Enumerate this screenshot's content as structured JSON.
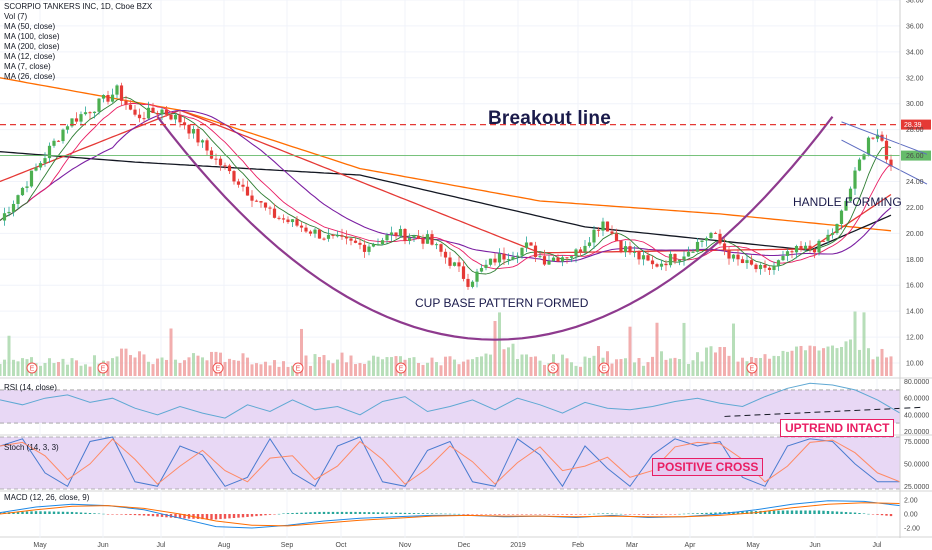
{
  "legend": {
    "title": "SCORPIO TANKERS INC, 1D, Cboe BZX",
    "lines": [
      "Vol (7)",
      "MA (50, close)",
      "MA (100, close)",
      "MA (200, close)",
      "MA (12, close)",
      "MA (7, close)",
      "MA (26, close)"
    ]
  },
  "annotations": {
    "breakout": "Breakout line",
    "handle": "HANDLE FORMING",
    "cup": "CUP BASE PATTERN FORMED",
    "uptrend": "UPTREND INTACT",
    "positive_cross": "POSITIVE CROSS"
  },
  "panes": {
    "rsi_label": "RSI (14, close)",
    "stoch_label": "Stoch (14, 3, 3)",
    "macd_label": "MACD (12, 26, close, 9)"
  },
  "colors": {
    "breakout_line": "#e53935",
    "green_line": "#66bb6a",
    "ma50": "#e53935",
    "ma100": "#131722",
    "ma200": "#ff6d00",
    "ma12": "#e91e63",
    "ma7": "#2e7d32",
    "ma26": "#7b1fa2",
    "cup": "#8e3a8e",
    "up": "#26a69a",
    "down": "#ef5350",
    "annotation_accent": "#e91e63",
    "rsi_line": "#5fa8d3",
    "band": "#e8d8f5"
  },
  "chart_data": {
    "type": "line",
    "main": {
      "x_ticks": [
        "May",
        "Jun",
        "Jul",
        "Aug",
        "Sep",
        "Oct",
        "Nov",
        "Dec",
        "2019",
        "Feb",
        "Mar",
        "Apr",
        "May",
        "Jun",
        "Jul"
      ],
      "y_ticks": [
        10.0,
        12.0,
        14.0,
        16.0,
        18.0,
        20.0,
        22.0,
        24.0,
        26.0,
        28.0,
        30.0,
        32.0,
        34.0,
        36.0,
        38.0
      ],
      "ylim": [
        9,
        38
      ],
      "breakout_level": 28.39,
      "breakout_label": "28.39",
      "green_level": 26.0,
      "price_path": [
        [
          0,
          21.0
        ],
        [
          8,
          25.0
        ],
        [
          15,
          28.5
        ],
        [
          22,
          30.0
        ],
        [
          26,
          31.0
        ],
        [
          30,
          29.0
        ],
        [
          36,
          29.5
        ],
        [
          41,
          28.5
        ],
        [
          47,
          26.0
        ],
        [
          53,
          24.0
        ],
        [
          60,
          21.5
        ],
        [
          67,
          20.5
        ],
        [
          74,
          19.5
        ],
        [
          81,
          19.0
        ],
        [
          88,
          20.0
        ],
        [
          95,
          19.5
        ],
        [
          101,
          17.5
        ],
        [
          104,
          16.3
        ],
        [
          110,
          18.0
        ],
        [
          117,
          19.0
        ],
        [
          121,
          18.0
        ],
        [
          128,
          18.5
        ],
        [
          134,
          21.0
        ],
        [
          138,
          19.0
        ],
        [
          145,
          17.5
        ],
        [
          152,
          18.5
        ],
        [
          158,
          20.0
        ],
        [
          163,
          18.0
        ],
        [
          170,
          17.0
        ],
        [
          176,
          18.5
        ],
        [
          182,
          19.0
        ],
        [
          186,
          20.5
        ],
        [
          190,
          24.5
        ],
        [
          193,
          27.5
        ],
        [
          196,
          27.0
        ],
        [
          198,
          25.0
        ]
      ],
      "ma50": [
        [
          0,
          24.0
        ],
        [
          40,
          29.5
        ],
        [
          80,
          24.0
        ],
        [
          120,
          18.5
        ],
        [
          180,
          18.8
        ],
        [
          198,
          23.0
        ]
      ],
      "ma100": [
        [
          0,
          26.3
        ],
        [
          30,
          25.5
        ],
        [
          80,
          24.5
        ],
        [
          130,
          20.5
        ],
        [
          180,
          18.7
        ],
        [
          198,
          21.4
        ]
      ],
      "ma200": [
        [
          0,
          32.0
        ],
        [
          40,
          29.5
        ],
        [
          80,
          25.0
        ],
        [
          120,
          22.5
        ],
        [
          160,
          21.5
        ],
        [
          198,
          20.2
        ]
      ],
      "volume": [
        1.0,
        0.8,
        1.1,
        0.9,
        1.2,
        1.6,
        1.0,
        0.9,
        1.4,
        1.3,
        1.1,
        0.8,
        0.9,
        1.0,
        1.2,
        0.9,
        1.5,
        1.0,
        0.8,
        1.1,
        1.3,
        2.4,
        1.2,
        1.0,
        0.9,
        1.8,
        1.1,
        1.0,
        1.4,
        1.2,
        2.0,
        1.3,
        1.6,
        1.8,
        2.4,
        2.0,
        2.6,
        1.6,
        1.8
      ],
      "event_markers": [
        "E",
        "E",
        "E",
        "E",
        "E",
        "S",
        "E",
        "E"
      ]
    },
    "rsi": {
      "y_ticks": [
        20.0,
        40.0,
        60.0,
        80.0
      ],
      "y_tick_labels": [
        "20.0000",
        "40.0000",
        "60.0000",
        "80.0000"
      ],
      "ylim": [
        18,
        82
      ],
      "band": [
        30,
        70
      ],
      "values": [
        58,
        52,
        60,
        64,
        55,
        60,
        48,
        40,
        50,
        42,
        36,
        52,
        44,
        58,
        46,
        50,
        40,
        56,
        62,
        44,
        50,
        58,
        46,
        60,
        52,
        42,
        55,
        48,
        46,
        50,
        56,
        60,
        54,
        50,
        62,
        72,
        78,
        76,
        70,
        58,
        42
      ],
      "trendline": [
        [
          161,
          38
        ],
        [
          205,
          49
        ]
      ]
    },
    "stoch": {
      "y_ticks": [
        25.0,
        50.0,
        75.0
      ],
      "y_tick_labels": [
        "25.0000",
        "50.0000",
        "75.0000"
      ],
      "ylim": [
        22,
        80
      ],
      "band": [
        20,
        80
      ],
      "values": [
        70,
        78,
        40,
        25,
        75,
        80,
        30,
        25,
        70,
        60,
        25,
        35,
        78,
        40,
        25,
        70,
        80,
        30,
        25,
        65,
        75,
        30,
        25,
        78,
        60,
        25,
        70,
        45,
        25,
        60,
        78,
        70,
        75,
        35,
        25,
        70,
        78,
        75,
        50,
        30,
        30
      ]
    },
    "macd": {
      "y_ticks": [
        -2.0,
        0.0,
        2.0
      ],
      "y_tick_labels": [
        "-2.00",
        "0.00",
        "2.00"
      ],
      "ylim": [
        -3,
        3
      ],
      "macd": [
        0.2,
        1.0,
        1.4,
        1.2,
        0.6,
        -0.6,
        -1.8,
        -2.0,
        -1.6,
        -1.0,
        -0.6,
        -0.4,
        -0.2,
        -0.2,
        -0.4,
        -0.3,
        -0.5,
        -0.2,
        -0.5,
        -0.4,
        0.0,
        0.6,
        1.4,
        1.9,
        1.8,
        1.2
      ],
      "signal": [
        0.0,
        0.6,
        1.1,
        1.2,
        0.8,
        0.0,
        -1.0,
        -1.6,
        -1.7,
        -1.3,
        -0.9,
        -0.6,
        -0.3,
        -0.2,
        -0.3,
        -0.3,
        -0.4,
        -0.3,
        -0.4,
        -0.4,
        -0.2,
        0.2,
        0.9,
        1.4,
        1.6,
        1.5
      ]
    }
  }
}
